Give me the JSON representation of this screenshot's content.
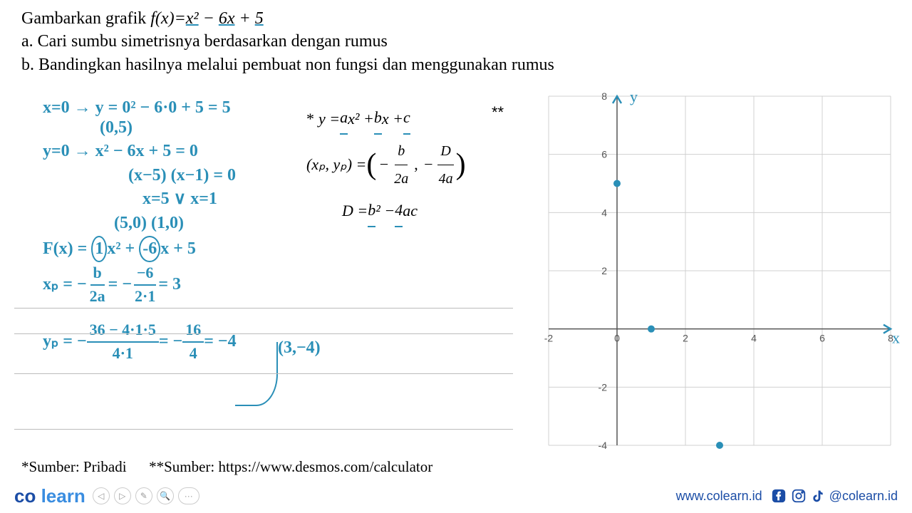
{
  "problem": {
    "title_pre": "Gambarkan grafik ",
    "fx": "f(x)=",
    "eq_parts": [
      "x²",
      " − ",
      "6x",
      " + ",
      "5"
    ],
    "a": "a. Cari sumbu simetrisnya berdasarkan dengan rumus",
    "b": "b. Bandingkan hasilnya melalui pembuat non fungsi dan menggunakan rumus"
  },
  "hand": {
    "l1": "x=0 → y = 0² − 6·0 + 5 = 5",
    "l1b": "(0,5)",
    "l2": "y=0 → x² − 6x + 5 = 0",
    "l3": "(x−5) (x−1) = 0",
    "l4": "x=5 ∨ x=1",
    "l5": "(5,0)  (1,0)",
    "l6a": "F(x) = ",
    "l6b": "1",
    "l6c": "x² + ",
    "l6d": "-6",
    "l6e": "x + 5",
    "xp_label": "xₚ = − ",
    "xp_f1n": "b",
    "xp_f1d": "2a",
    "eq": " = − ",
    "xp_f2n": "−6",
    "xp_f2d": "2·1",
    "xp_res": " = 3",
    "vertex": "(3,−4)",
    "yp_label": "yₚ = − ",
    "yp_f1n": "36 − 4·1·5",
    "yp_f1d": "4·1",
    "yp_eq2": " = − ",
    "yp_f2n": "16",
    "yp_f2d": "4",
    "yp_res": " = −4"
  },
  "formula": {
    "star": "*",
    "line1_pre": "y = ",
    "a": "a",
    "x2": "x² + ",
    "b": "b",
    "xc": "x + ",
    "c": "c",
    "vertex_l": "(xₚ, yₚ) = ",
    "fb": "b",
    "f2a": "2a",
    "fD": "D",
    "f4a": "4a",
    "disc_l": "D = ",
    "db": "b",
    "d2": "² − ",
    "d4": "4",
    "dac": "ac"
  },
  "graph": {
    "y_label": "y",
    "x_label": "x",
    "x_range": [
      -2,
      8
    ],
    "y_range": [
      -4,
      8
    ],
    "x_ticks": [
      -2,
      0,
      2,
      4,
      6,
      8
    ],
    "y_ticks": [
      -4,
      -2,
      2,
      4,
      6,
      8
    ],
    "grid_color": "#d0d0d0",
    "axis_color": "#555555",
    "tick_fontsize": 14,
    "label_color": "#2a8fb7",
    "points": [
      {
        "x": 0,
        "y": 5,
        "color": "#2a8fb7"
      },
      {
        "x": 1,
        "y": 0,
        "color": "#2a8fb7"
      },
      {
        "x": 3,
        "y": -4,
        "color": "#2a8fb7"
      }
    ],
    "point_radius": 5
  },
  "footnote": {
    "src1": "*Sumber: Pribadi",
    "src2": "**Sumber: https://www.desmos.com/calculator"
  },
  "asterisks2": "**",
  "footer": {
    "logo_co": "co",
    "logo_learn": "learn",
    "url": "www.colearn.id",
    "handle": "@colearn.id"
  }
}
